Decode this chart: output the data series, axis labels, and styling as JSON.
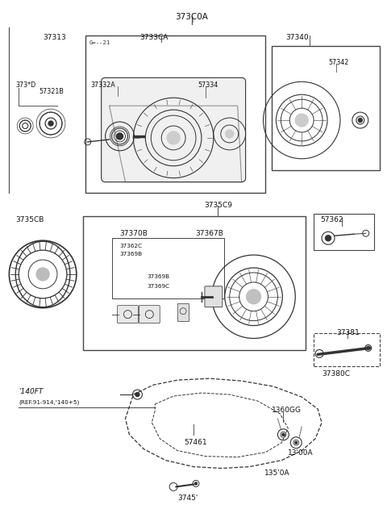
{
  "bg_color": "#ffffff",
  "fig_width": 4.8,
  "fig_height": 6.57,
  "dpi": 100,
  "border_color": "#444444",
  "line_color": "#555555",
  "part_color": "#333333",
  "text_color": "#111111",
  "labels": {
    "title": "373C0A",
    "top_left_label": "37313",
    "top_left_sub1": "373*D",
    "top_left_sub2": "57321B",
    "top_main_label": "3733CA",
    "top_main_sub1": "37332A",
    "top_main_sub2": "57334",
    "top_right_label": "37340",
    "top_right_sub": "57342",
    "mid_label": "3735C9",
    "mid_left_label": "3735CB",
    "mid_inner1": "37370B",
    "mid_inner2": "37362C",
    "mid_inner3": "37369B",
    "mid_inner4": "37369B",
    "mid_inner5": "37369C",
    "mid_inner6": "37367B",
    "mid_right_label": "57362",
    "mid_bot1": "37381",
    "mid_bot2": "37380C",
    "bot_ref1": "'140FT",
    "bot_ref2": "(REF.91-914,'140+5)",
    "bot_p1": "57461",
    "bot_p2": "3745'",
    "bot_p3": "1360GG",
    "bot_p4": "13'00A",
    "bot_p5": "135'0A"
  },
  "fs_title": 7.5,
  "fs_label": 6.5,
  "fs_small": 5.8,
  "fs_tiny": 5.2
}
